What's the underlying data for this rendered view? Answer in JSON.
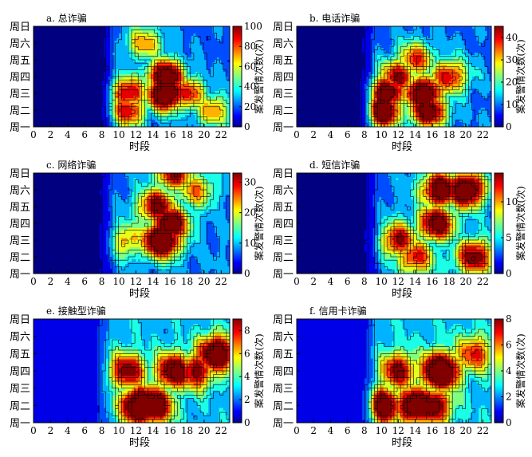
{
  "figure": {
    "xlabel": "时段",
    "colorbar_label": "案发警情次数(次)",
    "x_ticks": [
      0,
      2,
      4,
      6,
      8,
      10,
      12,
      14,
      16,
      18,
      20,
      22
    ],
    "y_categories": [
      "周一",
      "周二",
      "周三",
      "周四",
      "周五",
      "周六",
      "周日"
    ]
  },
  "chart_data": [
    {
      "type": "heatmap",
      "id": "total",
      "title": "a. 总诈骗",
      "xlabel": "时段",
      "xlim": [
        0,
        23
      ],
      "y_categories": [
        "周一",
        "周二",
        "周三",
        "周四",
        "周五",
        "周六",
        "周日"
      ],
      "zlim": [
        0,
        100
      ],
      "colorbar_ticks": [
        0,
        20,
        40,
        60,
        80,
        100
      ],
      "colorbar_label": "案发警情次数(次)",
      "contour_lines": true,
      "hotspots": [
        {
          "hour": 15.5,
          "day": "周三",
          "value": 100
        },
        {
          "hour": 15.5,
          "day": "周四",
          "value": 90
        },
        {
          "hour": 11,
          "day": "周三",
          "value": 70
        },
        {
          "hour": 11,
          "day": "周二",
          "value": 65
        },
        {
          "hour": 18,
          "day": "周三",
          "value": 60
        },
        {
          "hour": 21,
          "day": "周二",
          "value": 45
        },
        {
          "hour": 13,
          "day": "周六",
          "value": 45
        }
      ],
      "background_value": 3,
      "ramp_start_hour": 8,
      "ramp_end_hour": 9.5
    },
    {
      "type": "heatmap",
      "id": "phone",
      "title": "b. 电话诈骗",
      "xlabel": "时段",
      "xlim": [
        0,
        23
      ],
      "y_categories": [
        "周一",
        "周二",
        "周三",
        "周四",
        "周五",
        "周六",
        "周日"
      ],
      "zlim": [
        0,
        45
      ],
      "colorbar_ticks": [
        0,
        10,
        20,
        30,
        40
      ],
      "colorbar_label": "案发警情次数(次)",
      "contour_lines": true,
      "hotspots": [
        {
          "hour": 10,
          "day": "周二",
          "value": 44
        },
        {
          "hour": 10.5,
          "day": "周三",
          "value": 40
        },
        {
          "hour": 15,
          "day": "周三",
          "value": 42
        },
        {
          "hour": 15.5,
          "day": "周二",
          "value": 38
        },
        {
          "hour": 12,
          "day": "周四",
          "value": 30
        },
        {
          "hour": 18,
          "day": "周四",
          "value": 28
        },
        {
          "hour": 14,
          "day": "周五",
          "value": 25
        }
      ],
      "background_value": 2,
      "ramp_start_hour": 8,
      "ramp_end_hour": 9
    },
    {
      "type": "heatmap",
      "id": "network",
      "title": "c. 网络诈骗",
      "xlabel": "时段",
      "xlim": [
        0,
        23
      ],
      "y_categories": [
        "周一",
        "周二",
        "周三",
        "周四",
        "周五",
        "周六",
        "周日"
      ],
      "zlim": [
        0,
        33
      ],
      "colorbar_ticks": [
        0,
        10,
        20,
        30
      ],
      "colorbar_label": "案发警情次数(次)",
      "contour_lines": true,
      "hotspots": [
        {
          "hour": 15,
          "day": "周三",
          "value": 33
        },
        {
          "hour": 16,
          "day": "周四",
          "value": 28
        },
        {
          "hour": 14.5,
          "day": "周五",
          "value": 24
        },
        {
          "hour": 16.5,
          "day": "周日",
          "value": 22
        },
        {
          "hour": 11,
          "day": "周三",
          "value": 14
        },
        {
          "hour": 19,
          "day": "周六",
          "value": 15
        }
      ],
      "background_value": 2,
      "ramp_start_hour": 8,
      "ramp_end_hour": 9.5
    },
    {
      "type": "heatmap",
      "id": "sms",
      "title": "d. 短信诈骗",
      "xlabel": "时段",
      "xlim": [
        0,
        23
      ],
      "y_categories": [
        "周一",
        "周二",
        "周三",
        "周四",
        "周五",
        "周六",
        "周日"
      ],
      "zlim": [
        0,
        14
      ],
      "colorbar_ticks": [
        0,
        5,
        10
      ],
      "colorbar_label": "案发警情次数(次)",
      "contour_lines": true,
      "hotspots": [
        {
          "hour": 20,
          "day": "周六",
          "value": 13
        },
        {
          "hour": 17,
          "day": "周六",
          "value": 12
        },
        {
          "hour": 16.5,
          "day": "周四",
          "value": 11
        },
        {
          "hour": 21,
          "day": "周二",
          "value": 10
        },
        {
          "hour": 12,
          "day": "周三",
          "value": 9
        },
        {
          "hour": 14,
          "day": "周二",
          "value": 8
        }
      ],
      "background_value": 1,
      "ramp_start_hour": 8.5,
      "ramp_end_hour": 10
    },
    {
      "type": "heatmap",
      "id": "contact",
      "title": "e. 接触型诈骗",
      "xlabel": "时段",
      "xlim": [
        0,
        23
      ],
      "y_categories": [
        "周一",
        "周二",
        "周三",
        "周四",
        "周五",
        "周六",
        "周日"
      ],
      "zlim": [
        0,
        9
      ],
      "colorbar_ticks": [
        0,
        2,
        4,
        6,
        8
      ],
      "colorbar_label": "案发警情次数(次)",
      "contour_lines": true,
      "hotspots": [
        {
          "hour": 12.5,
          "day": "周二",
          "value": 9
        },
        {
          "hour": 14,
          "day": "周二",
          "value": 8
        },
        {
          "hour": 16.5,
          "day": "周四",
          "value": 7
        },
        {
          "hour": 21.5,
          "day": "周五",
          "value": 8
        },
        {
          "hour": 11,
          "day": "周四",
          "value": 6
        },
        {
          "hour": 19,
          "day": "周四",
          "value": 6
        }
      ],
      "background_value": 1,
      "ramp_start_hour": 7,
      "ramp_end_hour": 9
    },
    {
      "type": "heatmap",
      "id": "creditcard",
      "title": "f. 信用卡诈骗",
      "xlabel": "时段",
      "xlim": [
        0,
        23
      ],
      "y_categories": [
        "周一",
        "周二",
        "周三",
        "周四",
        "周五",
        "周六",
        "周日"
      ],
      "zlim": [
        0,
        8
      ],
      "colorbar_ticks": [
        0,
        2,
        4,
        6,
        8
      ],
      "colorbar_label": "案发警情次数(次)",
      "contour_lines": true,
      "hotspots": [
        {
          "hour": 17,
          "day": "周四",
          "value": 8
        },
        {
          "hour": 10,
          "day": "周二",
          "value": 7
        },
        {
          "hour": 14,
          "day": "周二",
          "value": 7
        },
        {
          "hour": 16,
          "day": "周二",
          "value": 6
        },
        {
          "hour": 12,
          "day": "周四",
          "value": 5
        },
        {
          "hour": 21,
          "day": "周五",
          "value": 4
        }
      ],
      "background_value": 1,
      "ramp_start_hour": 8,
      "ramp_end_hour": 9.5
    }
  ]
}
